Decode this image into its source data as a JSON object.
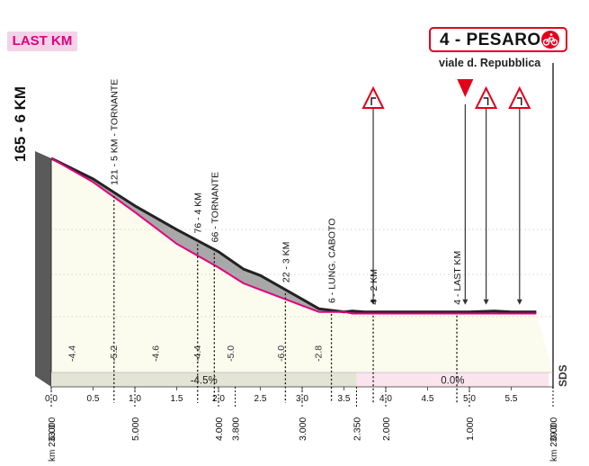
{
  "badge": "LAST KM",
  "finish": {
    "city": "4 - PESARO",
    "street": "viale d. Repubblica"
  },
  "colors": {
    "accent": "#e3007e",
    "finish_red": "#e3001b",
    "ground": "#fbfbee",
    "profile_line": "#e3007e",
    "road": "#222222"
  },
  "left_label": "165 - 6 KM",
  "right_label": "SDS",
  "chart_data": {
    "type": "area",
    "xlabel": "",
    "ylabel": "",
    "xlim": [
      0,
      6
    ],
    "km_ticks": [
      "0.0",
      "0.5",
      "1.0",
      "1.5",
      "2.0",
      "2.5",
      "3.0",
      "3.5",
      "4.0",
      "4.5",
      "5.0",
      "5.5"
    ],
    "km_tick_values": [
      0,
      0.5,
      1,
      1.5,
      2,
      2.5,
      3,
      3.5,
      4,
      4.5,
      5,
      5.5
    ],
    "profile": {
      "x": [
        0,
        0.5,
        1.0,
        1.5,
        2.0,
        2.3,
        2.5,
        3.0,
        3.2,
        3.5,
        3.6,
        3.75,
        4.0,
        4.5,
        5.0,
        5.3,
        5.5,
        5.8
      ],
      "relief": [
        100,
        87,
        70,
        55,
        41,
        30,
        26,
        11,
        5,
        3,
        3.5,
        3,
        3,
        3,
        3,
        3.5,
        3,
        3
      ],
      "road": [
        100,
        85,
        66,
        46,
        31,
        21,
        17,
        7,
        3,
        3,
        2,
        2,
        2,
        2,
        2,
        2,
        2,
        2
      ]
    },
    "gradients": [
      {
        "x": 0.25,
        "label": "-4.4"
      },
      {
        "x": 0.75,
        "label": "-5.2"
      },
      {
        "x": 1.25,
        "label": "-4.6"
      },
      {
        "x": 1.75,
        "label": "-4.4"
      },
      {
        "x": 2.15,
        "label": "-5.0"
      },
      {
        "x": 2.75,
        "label": "-6.0"
      },
      {
        "x": 3.2,
        "label": "-2.8"
      }
    ],
    "averages": [
      {
        "from": 0,
        "to": 3.65,
        "label": "-4.5%"
      },
      {
        "from": 3.65,
        "to": 5.95,
        "label": "0.0%"
      }
    ],
    "markers": [
      {
        "x": 0.75,
        "label": "121 - 5 KM - TORNANTE"
      },
      {
        "x": 1.75,
        "label": "76 - 4 KM"
      },
      {
        "x": 1.95,
        "label": "66 - TORNANTE"
      },
      {
        "x": 2.8,
        "label": "22 - 3 KM"
      },
      {
        "x": 3.35,
        "label": "6 - LUNG. CABOTO"
      },
      {
        "x": 3.85,
        "label": "4 - 2 KM"
      },
      {
        "x": 4.85,
        "label": "4 - LAST KM"
      }
    ],
    "poles": [
      {
        "x": 3.85,
        "icon": "right-turn-icon"
      },
      {
        "x": 4.95,
        "icon": "flamme-rouge-icon"
      },
      {
        "x": 5.2,
        "icon": "left-turn-icon"
      },
      {
        "x": 5.6,
        "icon": "left-turn-icon"
      }
    ],
    "distance_labels": [
      {
        "x": 0,
        "top": "6.000",
        "bottom": "km 233.0"
      },
      {
        "x": 1.0,
        "top": "5.000",
        "bottom": ""
      },
      {
        "x": 2.0,
        "top": "4.000",
        "bottom": ""
      },
      {
        "x": 2.2,
        "top": "3.800",
        "bottom": ""
      },
      {
        "x": 3.0,
        "top": "3.000",
        "bottom": ""
      },
      {
        "x": 3.65,
        "top": "2.350",
        "bottom": ""
      },
      {
        "x": 4.0,
        "top": "2.000",
        "bottom": ""
      },
      {
        "x": 5.0,
        "top": "1.000",
        "bottom": ""
      },
      {
        "x": 6.0,
        "top": "0.000",
        "bottom": "km 239.0"
      }
    ]
  }
}
